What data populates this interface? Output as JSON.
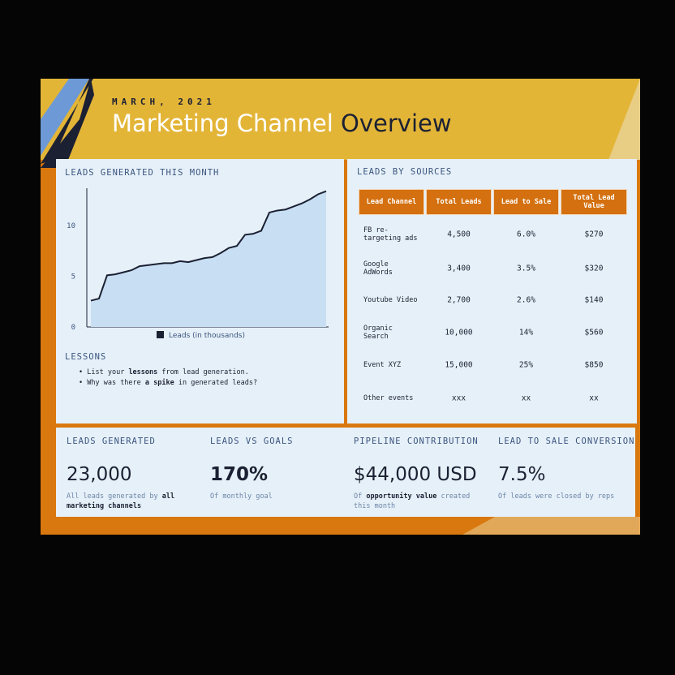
{
  "header": {
    "date": "MARCH, 2021",
    "title": [
      "Marketing Channel",
      "Overview"
    ]
  },
  "chart_data": {
    "type": "line",
    "title": "LEADS GENERATED THIS MONTH",
    "categories": [
      null,
      null,
      null,
      null,
      null,
      null,
      null,
      null,
      null,
      null,
      null,
      null,
      null,
      null,
      null,
      null,
      null,
      null,
      null,
      null,
      null,
      null,
      null,
      null,
      null,
      null,
      null,
      null,
      null,
      null
    ],
    "series": [
      {
        "name": "Leads (in thousands)",
        "color": "#1b2033",
        "values": [
          2.6,
          2.8,
          5.1,
          5.2,
          5.4,
          5.6,
          6.0,
          6.1,
          6.2,
          6.3,
          6.3,
          6.5,
          6.4,
          6.6,
          6.8,
          6.9,
          7.3,
          7.8,
          8.0,
          9.1,
          9.2,
          9.5,
          11.3,
          11.5,
          11.6,
          11.9,
          12.2,
          12.6,
          13.1,
          13.4
        ]
      }
    ],
    "ylim": [
      0,
      13.7
    ],
    "yticks": [
      0,
      5,
      10
    ],
    "grid": false
  },
  "lessons": {
    "title": "LESSONS",
    "items": [
      [
        "List your ",
        "lessons",
        " from lead generation."
      ],
      [
        "Why was there ",
        "a spike",
        " in generated leads?"
      ]
    ]
  },
  "table": {
    "title": "LEADS BY SOURCES",
    "columns": [
      "Lead Channel",
      "Total Leads",
      "Lead to Sale",
      "Total Lead Value"
    ],
    "rows": [
      [
        "FB re-targeting ads",
        "4,500",
        "6.0%",
        "$270"
      ],
      [
        "Google AdWords",
        "3,400",
        "3.5%",
        "$320"
      ],
      [
        "Youtube Video",
        "2,700",
        "2.6%",
        "$140"
      ],
      [
        "Organic Search",
        "10,000",
        "14%",
        "$560"
      ],
      [
        "Event XYZ",
        "15,000",
        "25%",
        "$850"
      ],
      [
        "Other events",
        "xxx",
        "xx",
        "xx"
      ]
    ]
  },
  "kpis": [
    {
      "label": "LEADS GENERATED",
      "value": "23,000",
      "note": [
        "All leads generated by ",
        "all marketing channels",
        ""
      ]
    },
    {
      "label": "LEADS VS GOALS",
      "value": "170%",
      "note": [
        "Of monthly goal",
        "",
        ""
      ]
    },
    {
      "label": "PIPELINE CONTRIBUTION",
      "value": "$44,000 USD",
      "note": [
        "Of ",
        "opportunity value",
        " created this month"
      ]
    },
    {
      "label": "LEAD TO SALE CONVERSION",
      "value": "7.5%",
      "note": [
        "Of leads were closed by reps",
        "",
        ""
      ]
    }
  ]
}
